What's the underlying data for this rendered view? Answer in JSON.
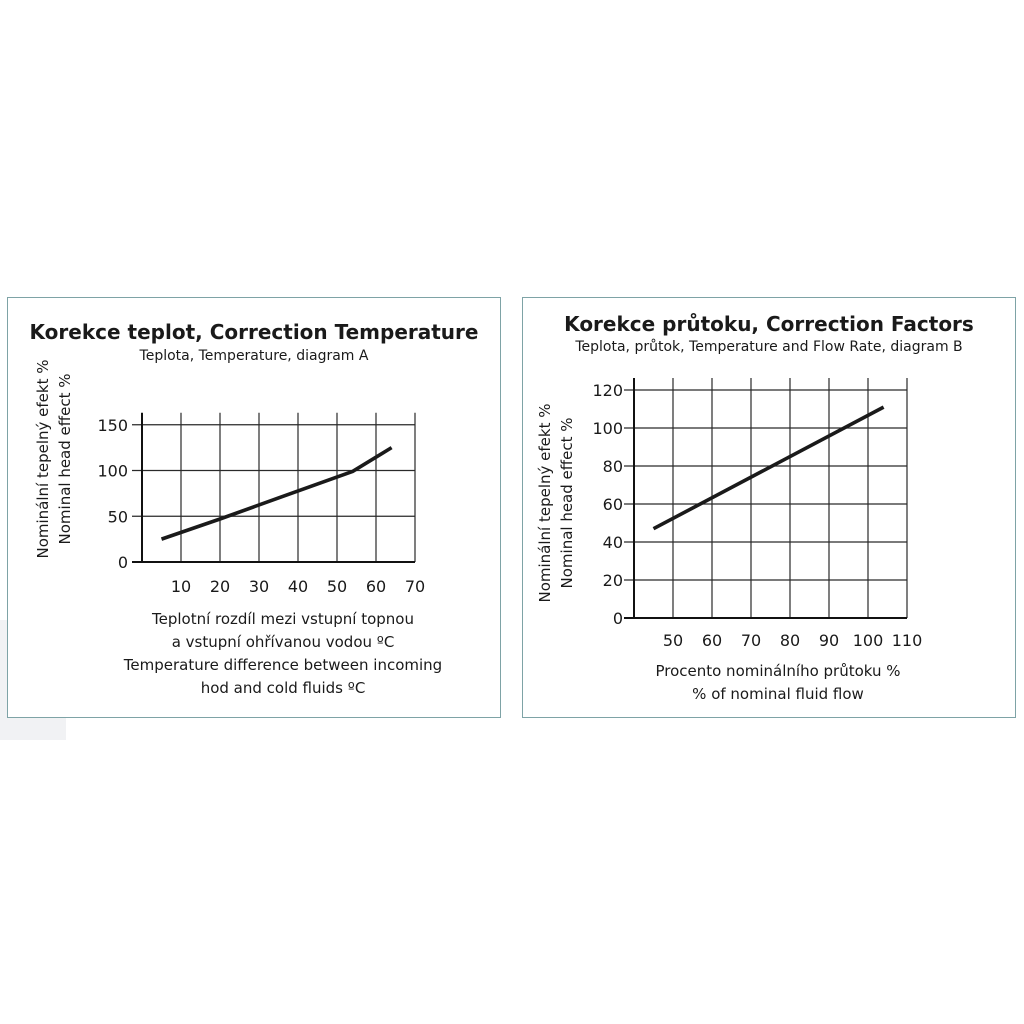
{
  "chart_data": [
    {
      "type": "line",
      "title": "Korekce teplot, Correction Temperature",
      "subtitle": "Teplota, Temperature, diagram A",
      "ylabel_lines": [
        "Nominální tepelný efekt %",
        "Nominal head effect %"
      ],
      "xlabel_lines": [
        "Teplotní rozdíl mezi vstupní topnou",
        "a vstupní ohřívanou vodou ºC",
        "Temperature difference between incoming",
        "hod and cold fluids ºC"
      ],
      "x_ticks": [
        "10",
        "20",
        "30",
        "40",
        "50",
        "60",
        "70"
      ],
      "y_ticks": [
        "0",
        "50",
        "100",
        "150"
      ],
      "xlim": [
        0,
        70
      ],
      "ylim": [
        0,
        150
      ],
      "grid": true,
      "series": [
        {
          "x": [
            5,
            20,
            35,
            54,
            64
          ],
          "y": [
            25,
            47,
            70,
            99,
            125
          ]
        }
      ]
    },
    {
      "type": "line",
      "title": "Korekce průtoku, Correction Factors",
      "subtitle": "Teplota, průtok, Temperature and Flow Rate, diagram B",
      "ylabel_lines": [
        "Nominální tepelný efekt %",
        "Nominal head effect %"
      ],
      "xlabel_lines": [
        "Procento nominálního průtoku %",
        "% of nominal fluid flow"
      ],
      "x_ticks": [
        "50",
        "60",
        "70",
        "80",
        "90",
        "100",
        "110"
      ],
      "y_ticks": [
        "0",
        "20",
        "40",
        "60",
        "80",
        "100",
        "120"
      ],
      "xlim": [
        40,
        110
      ],
      "ylim": [
        0,
        120
      ],
      "grid": true,
      "series": [
        {
          "x": [
            45,
            104
          ],
          "y": [
            47,
            111
          ]
        }
      ]
    }
  ]
}
